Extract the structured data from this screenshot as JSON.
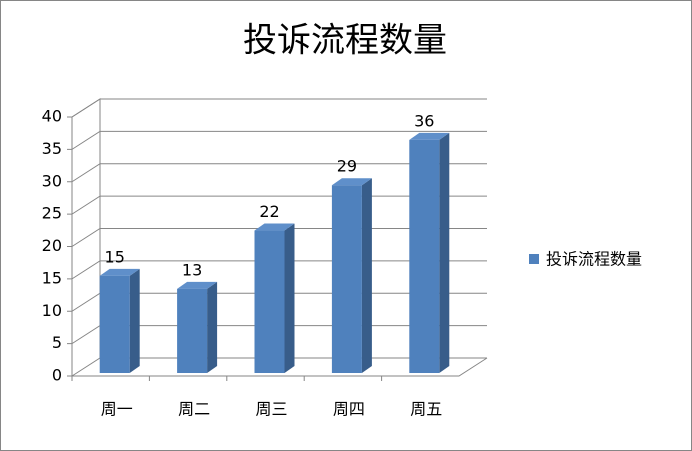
{
  "chart_data": {
    "type": "bar3d",
    "title": "投诉流程数量",
    "categories": [
      "周一",
      "周二",
      "周三",
      "周四",
      "周五"
    ],
    "series": [
      {
        "name": "投诉流程数量",
        "color": "#4f81bd",
        "values": [
          15,
          13,
          22,
          29,
          36
        ]
      }
    ],
    "ylim": [
      0,
      40
    ],
    "yticks": [
      0,
      5,
      10,
      15,
      20,
      25,
      30,
      35,
      40
    ],
    "grid": true,
    "legend": "right"
  }
}
